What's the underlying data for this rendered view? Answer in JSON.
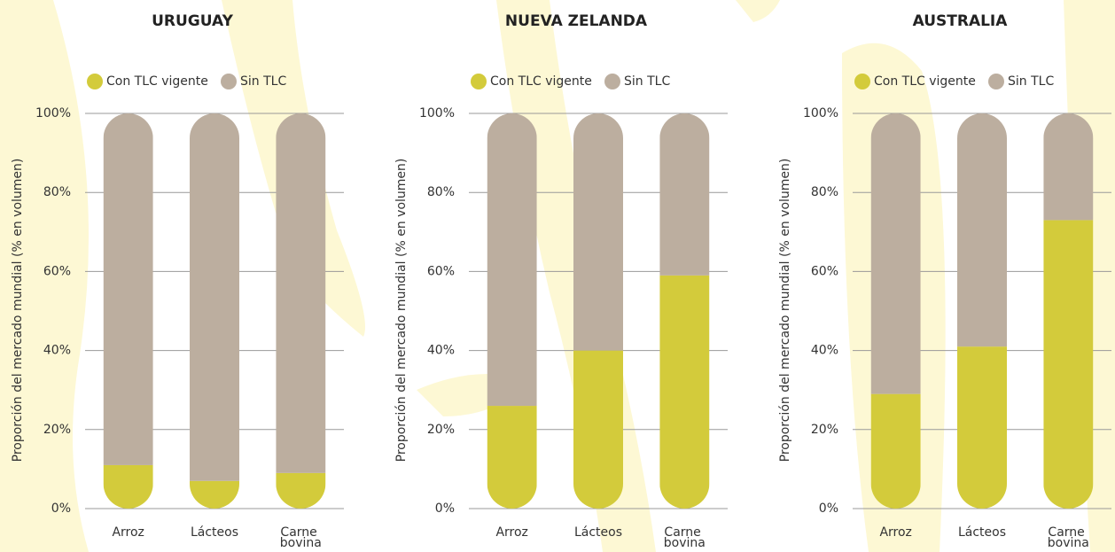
{
  "chart_data": [
    {
      "type": "bar",
      "stacked": true,
      "title": "URUGUAY",
      "ylabel": "Proporción del mercado mundial (% en volumen)",
      "categories": [
        "Arroz",
        "Lácteos",
        "Carne bovina"
      ],
      "series": [
        {
          "name": "Con TLC vigente",
          "color": "#d3cb3b",
          "values": [
            11,
            7,
            9
          ]
        },
        {
          "name": "Sin TLC",
          "color": "#bcae9f",
          "values": [
            89,
            93,
            91
          ]
        }
      ],
      "ylim": [
        0,
        100
      ],
      "yticks": [
        {
          "value": 0,
          "label": "0%"
        },
        {
          "value": 20,
          "label": "20%"
        },
        {
          "value": 40,
          "label": "40%"
        },
        {
          "value": 60,
          "label": "60%"
        },
        {
          "value": 80,
          "label": "80%"
        },
        {
          "value": 100,
          "label": "100%"
        }
      ],
      "grid": true
    },
    {
      "type": "bar",
      "stacked": true,
      "title": "NUEVA ZELANDA",
      "ylabel": "Proporción del mercado mundial (% en volumen)",
      "categories": [
        "Arroz",
        "Lácteos",
        "Carne bovina"
      ],
      "series": [
        {
          "name": "Con TLC vigente",
          "color": "#d3cb3b",
          "values": [
            26,
            40,
            59
          ]
        },
        {
          "name": "Sin TLC",
          "color": "#bcae9f",
          "values": [
            74,
            60,
            41
          ]
        }
      ],
      "ylim": [
        0,
        100
      ],
      "yticks": [
        {
          "value": 0,
          "label": "0%"
        },
        {
          "value": 20,
          "label": "20%"
        },
        {
          "value": 40,
          "label": "40%"
        },
        {
          "value": 60,
          "label": "60%"
        },
        {
          "value": 80,
          "label": "80%"
        },
        {
          "value": 100,
          "label": "100%"
        }
      ],
      "grid": true
    },
    {
      "type": "bar",
      "stacked": true,
      "title": "AUSTRALIA",
      "ylabel": "Proporción del mercado mundial (% en volumen)",
      "categories": [
        "Arroz",
        "Lácteos",
        "Carne bovina"
      ],
      "series": [
        {
          "name": "Con TLC vigente",
          "color": "#d3cb3b",
          "values": [
            29,
            41,
            73
          ]
        },
        {
          "name": "Sin TLC",
          "color": "#bcae9f",
          "values": [
            71,
            59,
            27
          ]
        }
      ],
      "ylim": [
        0,
        100
      ],
      "yticks": [
        {
          "value": 0,
          "label": "0%"
        },
        {
          "value": 20,
          "label": "20%"
        },
        {
          "value": 40,
          "label": "40%"
        },
        {
          "value": 60,
          "label": "60%"
        },
        {
          "value": 80,
          "label": "80%"
        },
        {
          "value": 100,
          "label": "100%"
        }
      ],
      "grid": true
    }
  ]
}
